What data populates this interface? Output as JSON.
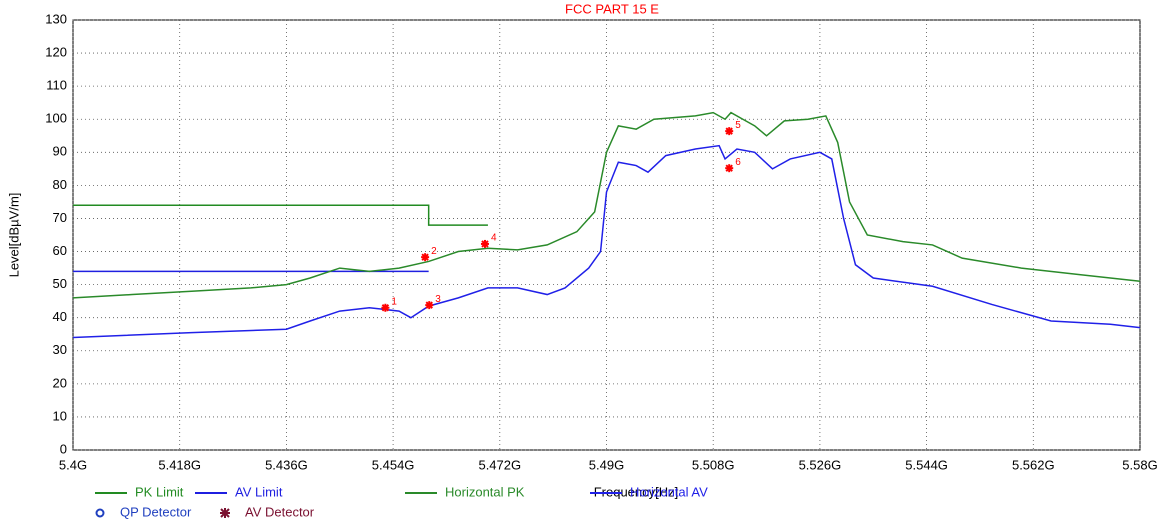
{
  "chart_data": {
    "type": "line",
    "title": "FCC PART 15 E",
    "title_color": "#ff0000",
    "x_label": "Frequency[Hz]",
    "y_label": "Level[dBµV/m]",
    "xlim": [
      5.4,
      5.58
    ],
    "ylim": [
      0,
      130
    ],
    "xticks": [
      {
        "value": 5.4,
        "label": "5.4G"
      },
      {
        "value": 5.418,
        "label": "5.418G"
      },
      {
        "value": 5.436,
        "label": "5.436G"
      },
      {
        "value": 5.454,
        "label": "5.454G"
      },
      {
        "value": 5.472,
        "label": "5.472G"
      },
      {
        "value": 5.49,
        "label": "5.49G"
      },
      {
        "value": 5.508,
        "label": "5.508G"
      },
      {
        "value": 5.526,
        "label": "5.526G"
      },
      {
        "value": 5.544,
        "label": "5.544G"
      },
      {
        "value": 5.562,
        "label": "5.562G"
      },
      {
        "value": 5.58,
        "label": "5.58G"
      }
    ],
    "yticks": [
      0,
      10,
      20,
      30,
      40,
      50,
      60,
      70,
      80,
      90,
      100,
      110,
      120,
      130
    ],
    "grid": true,
    "series": [
      {
        "name": "PK Limit",
        "color": "#228b22",
        "x": [
          5.4,
          5.46,
          5.46,
          5.47
        ],
        "values": [
          74,
          74,
          68,
          68
        ]
      },
      {
        "name": "AV Limit",
        "color": "#1f1fe0",
        "x": [
          5.4,
          5.46
        ],
        "values": [
          54,
          54
        ]
      },
      {
        "name": "Horizontal PK",
        "color": "#2a8a2a",
        "x": [
          5.4,
          5.41,
          5.42,
          5.43,
          5.436,
          5.44,
          5.445,
          5.45,
          5.455,
          5.46,
          5.465,
          5.47,
          5.475,
          5.48,
          5.485,
          5.488,
          5.49,
          5.492,
          5.495,
          5.498,
          5.505,
          5.508,
          5.51,
          5.511,
          5.513,
          5.515,
          5.517,
          5.52,
          5.524,
          5.527,
          5.529,
          5.531,
          5.534,
          5.54,
          5.545,
          5.55,
          5.56,
          5.57,
          5.58
        ],
        "values": [
          46,
          47,
          48,
          49,
          50,
          52,
          55,
          54,
          55,
          57,
          60,
          61,
          60.5,
          62,
          66,
          72,
          90,
          98,
          97,
          100,
          101,
          102,
          100,
          102,
          100,
          98,
          95,
          99.5,
          100,
          101,
          93,
          75,
          65,
          63,
          62,
          58,
          55,
          53,
          51
        ]
      },
      {
        "name": "Horizontal AV",
        "color": "#2020e8",
        "x": [
          5.4,
          5.42,
          5.436,
          5.44,
          5.445,
          5.45,
          5.455,
          5.457,
          5.46,
          5.465,
          5.47,
          5.475,
          5.48,
          5.483,
          5.487,
          5.489,
          5.49,
          5.492,
          5.495,
          5.497,
          5.5,
          5.505,
          5.509,
          5.51,
          5.512,
          5.515,
          5.518,
          5.521,
          5.526,
          5.528,
          5.53,
          5.532,
          5.535,
          5.545,
          5.555,
          5.565,
          5.575,
          5.58
        ],
        "values": [
          34,
          35.5,
          36.5,
          39,
          42,
          43,
          42,
          40,
          43.5,
          46,
          49,
          49,
          47,
          49,
          55,
          60,
          78,
          87,
          86,
          84,
          89,
          91,
          92,
          88,
          91,
          90,
          85,
          88,
          90,
          88,
          70,
          56,
          52,
          49.5,
          44,
          39,
          38,
          37
        ]
      }
    ],
    "markers": {
      "color": "#ff0000",
      "labels": [
        "1",
        "2",
        "3",
        "4",
        "5",
        "6"
      ],
      "x": [
        5.4527,
        5.4594,
        5.4601,
        5.4695,
        5.5107,
        5.5107
      ],
      "values": [
        43,
        58.3,
        43.8,
        62.3,
        96.4,
        85.2
      ]
    },
    "detectors": [
      {
        "name": "QP Detector",
        "color": "#1f3fbf",
        "symbol": "circle"
      },
      {
        "name": "AV Detector",
        "color": "#7a1030",
        "symbol": "star"
      }
    ]
  }
}
